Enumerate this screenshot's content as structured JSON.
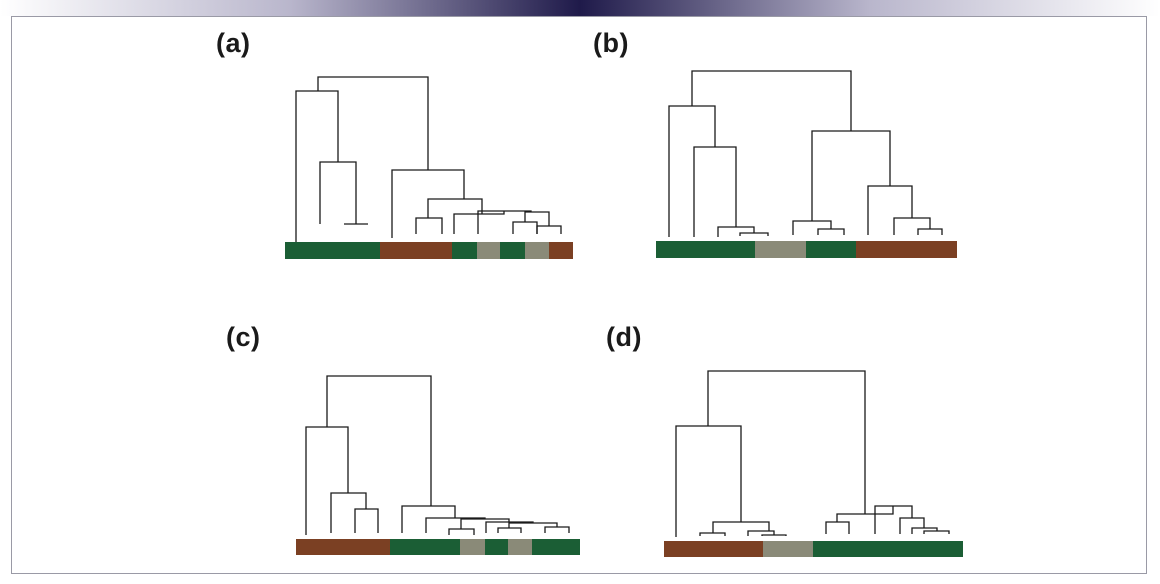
{
  "panels": [
    {
      "label": "(a)",
      "groups": [
        "green",
        "brown",
        "green",
        "gray",
        "green",
        "gray",
        "brown"
      ]
    },
    {
      "label": "(b)",
      "groups": [
        "green",
        "gray",
        "green",
        "brown"
      ]
    },
    {
      "label": "(c)",
      "groups": [
        "brown",
        "green",
        "gray",
        "green",
        "gray",
        "green"
      ]
    },
    {
      "label": "(d)",
      "groups": [
        "brown",
        "gray",
        "green"
      ]
    }
  ],
  "colors": {
    "green": "#1b5e35",
    "brown": "#7b4023",
    "gray": "#8a8a78",
    "line": "#1a1a1a",
    "frame": "#9a9aa6"
  }
}
